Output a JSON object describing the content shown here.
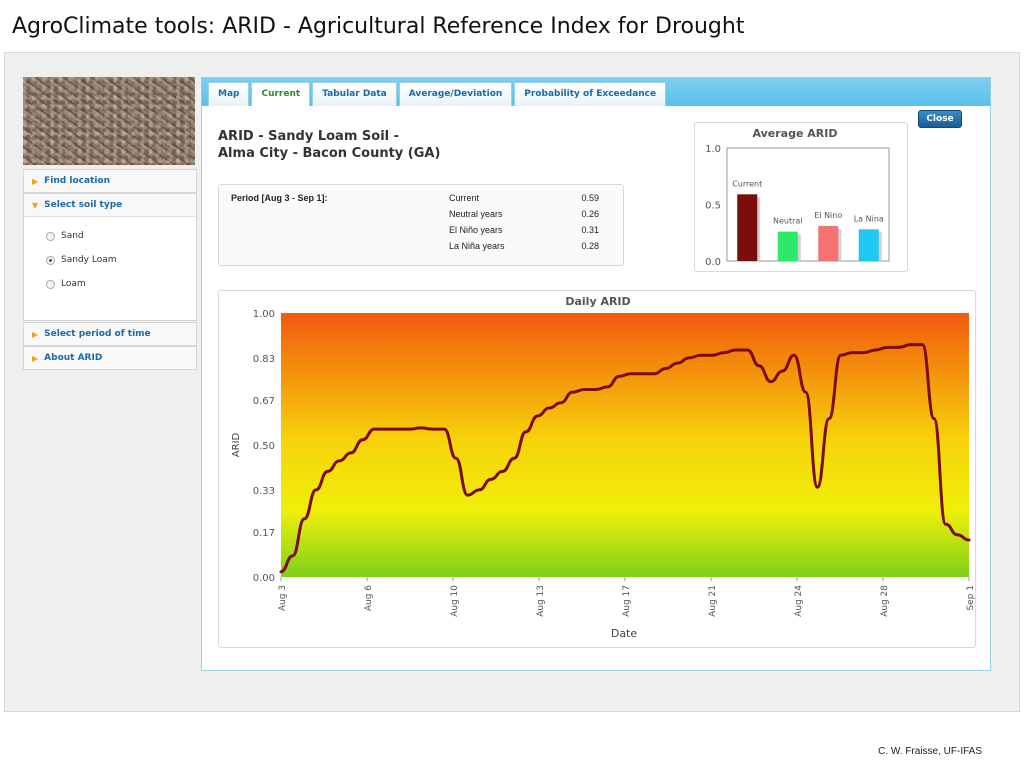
{
  "slide": {
    "title": "AgroClimate tools: ARID - Agricultural Reference Index for Drought",
    "credit": "C. W. Fraisse, UF-IFAS"
  },
  "sidebar": {
    "find_location": "Find location",
    "select_soil_type": "Select soil type",
    "soil_options": [
      {
        "label": "Sand",
        "selected": false
      },
      {
        "label": "Sandy Loam",
        "selected": true
      },
      {
        "label": "Loam",
        "selected": false
      }
    ],
    "select_period": "Select period of time",
    "about": "About ARID"
  },
  "tabs": [
    {
      "label": "Map",
      "active": false
    },
    {
      "label": "Current",
      "active": true
    },
    {
      "label": "Tabular Data",
      "active": false
    },
    {
      "label": "Average/Deviation",
      "active": false
    },
    {
      "label": "Probability of Exceedance",
      "active": false
    }
  ],
  "close_label": "Close",
  "result": {
    "title_line1": "ARID - Sandy Loam Soil -",
    "title_line2": "Alma City - Bacon County (GA)",
    "period_label": "Period [Aug 3 - Sep 1]:",
    "stats": [
      {
        "label": "Current",
        "value": "0.59"
      },
      {
        "label": "Neutral years",
        "value": "0.26"
      },
      {
        "label": "El Niño years",
        "value": "0.31"
      },
      {
        "label": "La Niña years",
        "value": "0.28"
      }
    ]
  },
  "chart_data": [
    {
      "type": "bar",
      "title": "Average ARID",
      "categories": [
        "Current",
        "Neutral",
        "El Nino",
        "La Nina"
      ],
      "values": [
        0.59,
        0.26,
        0.31,
        0.28
      ],
      "colors": [
        "#7a0c0c",
        "#2ee86a",
        "#f57272",
        "#1ec8f2"
      ],
      "yticks": [
        "0.0",
        "0.5",
        "1.0"
      ],
      "ylim": [
        0,
        1.0
      ]
    },
    {
      "type": "line",
      "title": "Daily ARID",
      "xlabel": "Date",
      "ylabel": "ARID",
      "ylim": [
        0,
        1.0
      ],
      "yticks": [
        "0.00",
        "0.17",
        "0.33",
        "0.50",
        "0.67",
        "0.83",
        "1.00"
      ],
      "xticks": [
        "Aug 3",
        "Aug 6",
        "Aug 10",
        "Aug 13",
        "Aug 17",
        "Aug 21",
        "Aug 24",
        "Aug 28",
        "Sep 1"
      ],
      "line_color": "#7a0c0c",
      "background_gradient": [
        "#f2590e",
        "#f7d20a",
        "#efef0a",
        "#7dd11a"
      ],
      "x": [
        0,
        0.5,
        1,
        1.5,
        2,
        2.5,
        3,
        3.5,
        4,
        4.5,
        5,
        5.5,
        6,
        6.5,
        7,
        7.5,
        8,
        8.5,
        9,
        9.5,
        10,
        10.5,
        11,
        11.5,
        12,
        12.5,
        13,
        13.5,
        14,
        14.5,
        15,
        15.5,
        16,
        16.5,
        17,
        17.5,
        18,
        18.5,
        19,
        19.5,
        20,
        20.5,
        21,
        21.5,
        22,
        22.5,
        23,
        23.5,
        24,
        24.5,
        25,
        25.5,
        26,
        26.5,
        27,
        27.5,
        28,
        28.5,
        29,
        29.5
      ],
      "y": [
        0.02,
        0.08,
        0.22,
        0.33,
        0.4,
        0.44,
        0.47,
        0.52,
        0.56,
        0.56,
        0.56,
        0.56,
        0.565,
        0.56,
        0.56,
        0.45,
        0.31,
        0.33,
        0.37,
        0.4,
        0.45,
        0.55,
        0.61,
        0.64,
        0.66,
        0.7,
        0.71,
        0.71,
        0.72,
        0.76,
        0.77,
        0.77,
        0.77,
        0.79,
        0.81,
        0.83,
        0.84,
        0.84,
        0.85,
        0.86,
        0.86,
        0.8,
        0.74,
        0.78,
        0.84,
        0.7,
        0.34,
        0.6,
        0.84,
        0.85,
        0.85,
        0.86,
        0.87,
        0.87,
        0.88,
        0.88,
        0.6,
        0.2,
        0.16,
        0.14
      ]
    }
  ]
}
